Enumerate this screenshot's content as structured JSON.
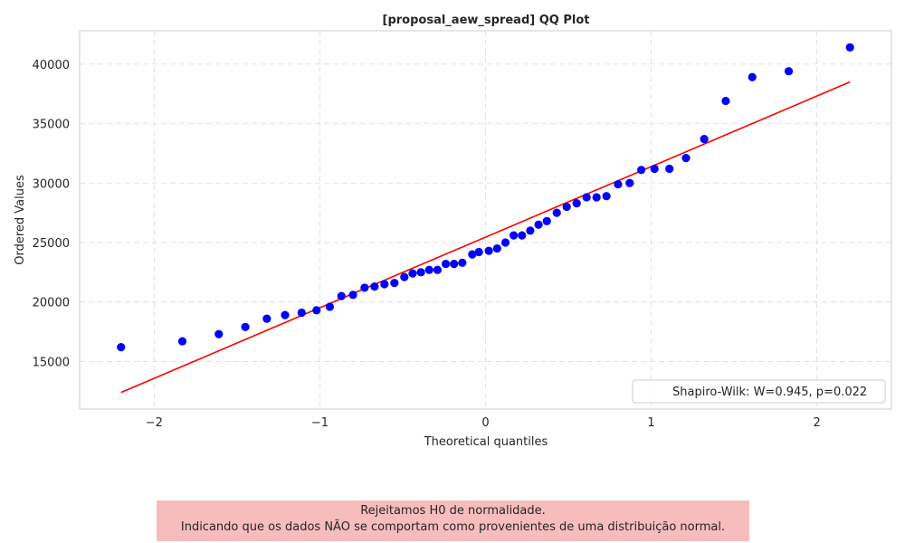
{
  "chart_data": {
    "type": "scatter",
    "title": "[proposal_aew_spread] QQ Plot",
    "xlabel": "Theoretical quantiles",
    "ylabel": "Ordered Values",
    "xlim": [
      -2.45,
      2.45
    ],
    "ylim": [
      11000,
      42800
    ],
    "x_ticks": [
      -2,
      -1,
      0,
      1,
      2
    ],
    "x_tick_labels": [
      "−2",
      "−1",
      "0",
      "1",
      "2"
    ],
    "y_ticks": [
      15000,
      20000,
      25000,
      30000,
      35000,
      40000
    ],
    "y_tick_labels": [
      "15000",
      "20000",
      "25000",
      "30000",
      "35000",
      "40000"
    ],
    "grid": true,
    "legend_position": "lower-right",
    "legend": [
      "Shapiro-Wilk: W=0.945, p=0.022"
    ],
    "points": {
      "color": "#0000ff",
      "x": [
        -2.2,
        -1.83,
        -1.61,
        -1.45,
        -1.32,
        -1.21,
        -1.11,
        -1.02,
        -0.94,
        -0.87,
        -0.8,
        -0.73,
        -0.67,
        -0.61,
        -0.55,
        -0.49,
        -0.44,
        -0.39,
        -0.34,
        -0.29,
        -0.24,
        -0.19,
        -0.14,
        -0.08,
        -0.04,
        0.02,
        0.07,
        0.12,
        0.17,
        0.22,
        0.27,
        0.32,
        0.37,
        0.43,
        0.49,
        0.55,
        0.61,
        0.67,
        0.73,
        0.8,
        0.87,
        0.94,
        1.02,
        1.11,
        1.21,
        1.32,
        1.45,
        1.61,
        1.83,
        2.2
      ],
      "y": [
        16200,
        16700,
        17300,
        17900,
        18600,
        18900,
        19100,
        19300,
        19600,
        20500,
        20600,
        21200,
        21300,
        21500,
        21600,
        22100,
        22400,
        22500,
        22700,
        22700,
        23200,
        23200,
        23300,
        24000,
        24200,
        24300,
        24500,
        25000,
        25600,
        25600,
        26000,
        26500,
        26800,
        27500,
        28000,
        28300,
        28800,
        28800,
        28900,
        29900,
        30000,
        31100,
        31200,
        31200,
        32100,
        33700,
        36900,
        38900,
        39400,
        41400
      ]
    },
    "fit_line": {
      "color": "#ff0000",
      "x": [
        -2.2,
        2.2
      ],
      "y": [
        12400,
        38500
      ]
    }
  },
  "note": {
    "line1": "Rejeitamos H0 de normalidade.",
    "line2": "Indicando que os dados NÃO se comportam como provenientes de uma distribuição normal."
  }
}
